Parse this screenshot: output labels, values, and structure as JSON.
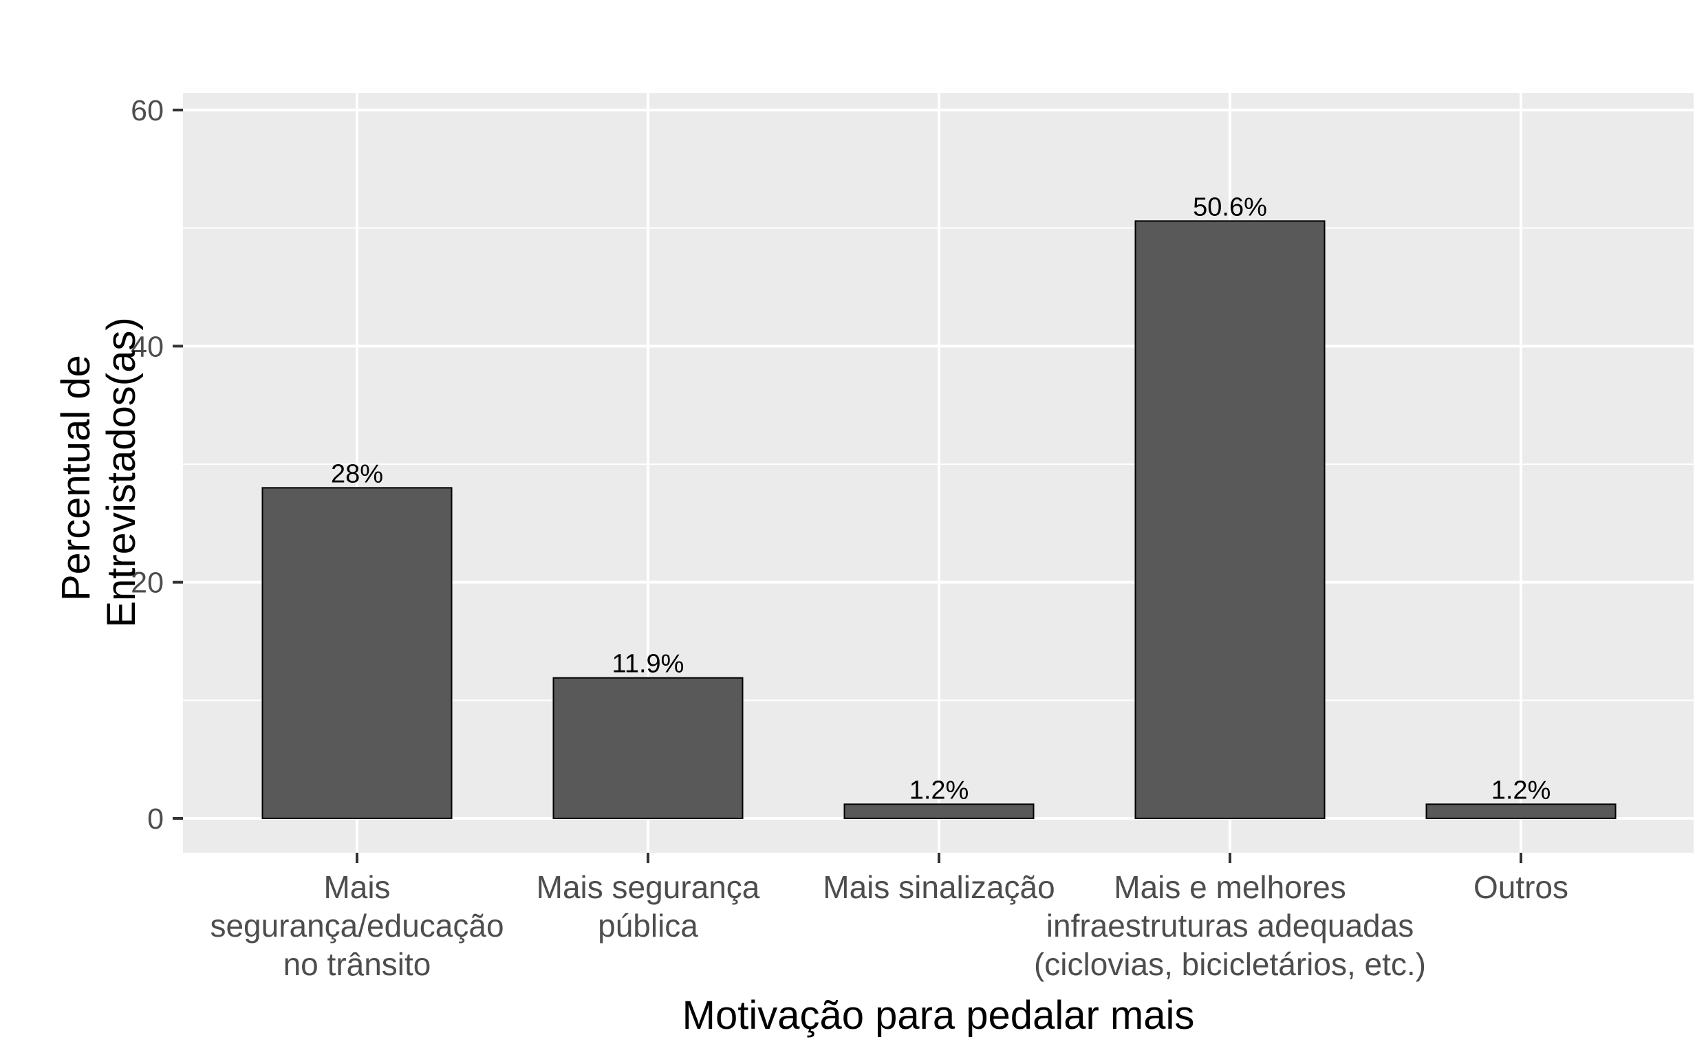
{
  "chart_data": {
    "type": "bar",
    "title": "",
    "xlabel": "Motivação para pedalar mais",
    "ylabel_lines": [
      "Percentual de",
      "Entrevistados(as)"
    ],
    "ylim": [
      0,
      60
    ],
    "yticks": [
      0,
      20,
      40,
      60
    ],
    "grid": true,
    "categories": [
      [
        "Mais",
        "segurança/educação",
        "no trânsito"
      ],
      [
        "Mais segurança",
        "pública"
      ],
      [
        "Mais sinalização"
      ],
      [
        "Mais e melhores",
        "infraestruturas adequadas",
        "(ciclovias, bicicletários, etc.)"
      ],
      [
        "Outros"
      ]
    ],
    "values": [
      28,
      11.9,
      1.2,
      50.6,
      1.2
    ],
    "data_labels": [
      "28%",
      "11.9%",
      "1.2%",
      "50.6%",
      "1.2%"
    ],
    "colors": {
      "bar_fill": "#595959",
      "bar_stroke": "#000000",
      "panel_bg": "#ebebeb",
      "grid": "#ffffff"
    }
  }
}
